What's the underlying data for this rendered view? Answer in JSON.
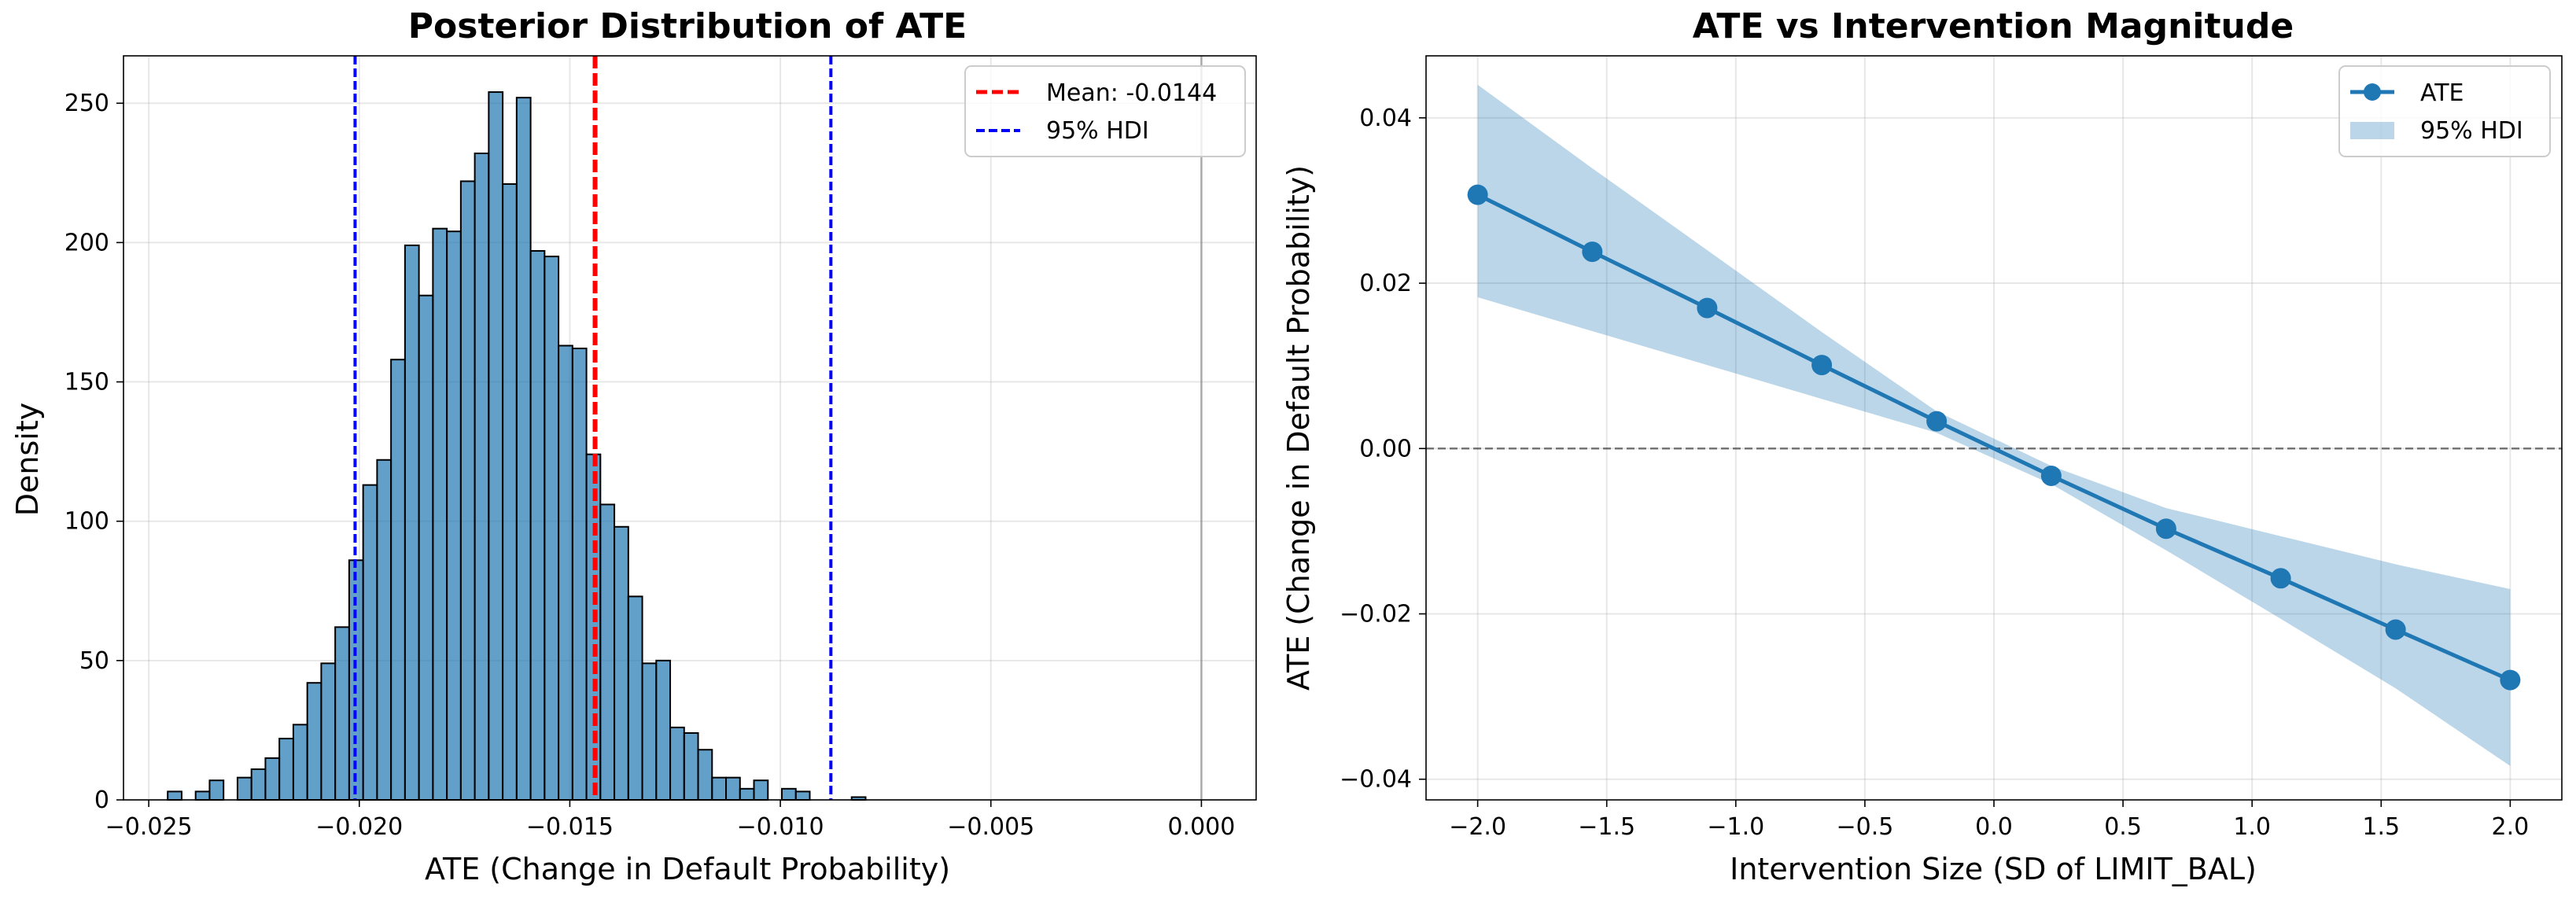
{
  "chart_data": [
    {
      "type": "bar",
      "title": "Posterior Distribution of ATE",
      "xlabel": "ATE (Change in Default Probability)",
      "ylabel": "Density",
      "xlim": [
        -0.0256,
        0.0013
      ],
      "ylim": [
        0,
        267
      ],
      "grid": true,
      "legend": "top-right",
      "xticks": [
        -0.025,
        -0.02,
        -0.015,
        -0.01,
        -0.005,
        0.0
      ],
      "xtick_labels": [
        "−0.025",
        "−0.020",
        "−0.015",
        "−0.010",
        "−0.005",
        "0.000"
      ],
      "yticks": [
        0,
        50,
        100,
        150,
        200,
        250
      ],
      "ytick_labels": [
        "0",
        "50",
        "100",
        "150",
        "200",
        "250"
      ],
      "bar_color": "#1f77b4",
      "bin_edges_start": -0.02455,
      "bin_width": 0.0003315,
      "values": [
        3,
        0,
        3,
        7,
        0,
        8,
        11,
        15,
        22,
        27,
        42,
        49,
        62,
        86,
        113,
        122,
        158,
        199,
        181,
        205,
        204,
        222,
        232,
        254,
        221,
        252,
        197,
        195,
        163,
        162,
        124,
        106,
        98,
        73,
        49,
        50,
        26,
        24,
        18,
        8,
        8,
        4,
        7,
        0,
        4,
        3,
        0,
        0,
        0,
        1
      ],
      "series": [
        {
          "name": "Mean: -0.0144",
          "value": -0.0144,
          "color": "#ff0000"
        },
        {
          "name": "95% HDI",
          "values": [
            -0.0201,
            -0.0088
          ],
          "color": "#0000ff"
        }
      ],
      "zero_line": 0.0
    },
    {
      "type": "line",
      "title": "ATE vs Intervention Magnitude",
      "xlabel": "Intervention Size (SD of LIMIT_BAL)",
      "ylabel": "ATE (Change in Default Probability)",
      "xlim": [
        -2.2,
        2.2
      ],
      "ylim": [
        -0.0425,
        0.0475
      ],
      "grid": true,
      "legend": "top-right",
      "xticks": [
        -2.0,
        -1.5,
        -1.0,
        -0.5,
        0.0,
        0.5,
        1.0,
        1.5,
        2.0
      ],
      "xtick_labels": [
        "−2.0",
        "−1.5",
        "−1.0",
        "−0.5",
        "0.0",
        "0.5",
        "1.0",
        "1.5",
        "2.0"
      ],
      "yticks": [
        -0.04,
        -0.02,
        0.0,
        0.02,
        0.04
      ],
      "ytick_labels": [
        "−0.04",
        "−0.02",
        "0.00",
        "0.02",
        "0.04"
      ],
      "x": [
        -2.0,
        -1.556,
        -1.111,
        -0.667,
        -0.222,
        0.222,
        0.667,
        1.111,
        1.556,
        2.0
      ],
      "series": [
        {
          "name": "ATE",
          "color": "#1f77b4",
          "values": [
            0.0307,
            0.0238,
            0.017,
            0.0101,
            0.0033,
            -0.0033,
            -0.0097,
            -0.0157,
            -0.0219,
            -0.028
          ]
        },
        {
          "name": "95% HDI",
          "color": "#1f77b4",
          "lower": [
            0.0183,
            0.0142,
            0.0101,
            0.006,
            0.0019,
            -0.0043,
            -0.0123,
            -0.0206,
            -0.029,
            -0.0384
          ],
          "upper": [
            0.044,
            0.0339,
            0.024,
            0.0141,
            0.0045,
            -0.0021,
            -0.0072,
            -0.0106,
            -0.014,
            -0.017
          ]
        }
      ],
      "zero_line": 0.0
    }
  ]
}
